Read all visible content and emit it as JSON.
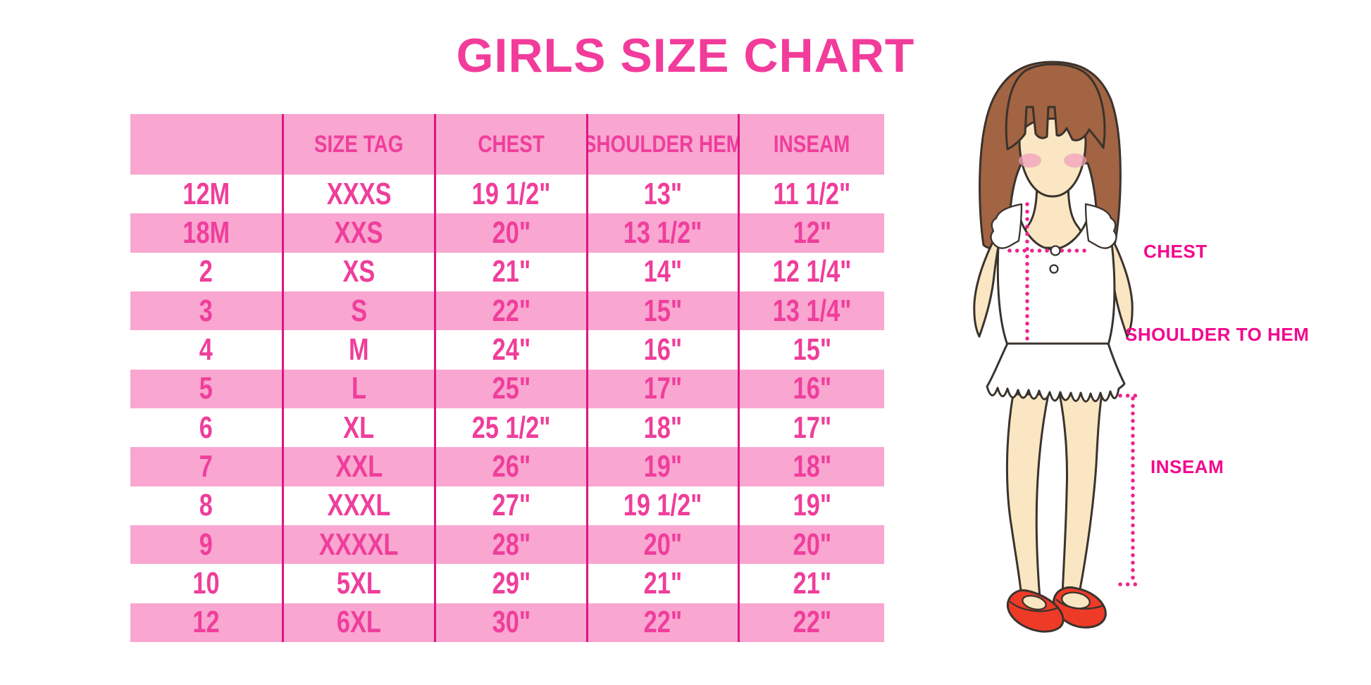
{
  "chart_data": {
    "type": "table",
    "title": "GIRLS SIZE CHART",
    "columns": [
      "",
      "SIZE TAG",
      "CHEST",
      "SHOULDER HEM",
      "INSEAM"
    ],
    "rows": [
      [
        "12M",
        "XXXS",
        "19 1/2\"",
        "13\"",
        "11 1/2\""
      ],
      [
        "18M",
        "XXS",
        "20\"",
        "13 1/2\"",
        "12\""
      ],
      [
        "2",
        "XS",
        "21\"",
        "14\"",
        "12 1/4\""
      ],
      [
        "3",
        "S",
        "22\"",
        "15\"",
        "13 1/4\""
      ],
      [
        "4",
        "M",
        "24\"",
        "16\"",
        "15\""
      ],
      [
        "5",
        "L",
        "25\"",
        "17\"",
        "16\""
      ],
      [
        "6",
        "XL",
        "25 1/2\"",
        "18\"",
        "17\""
      ],
      [
        "7",
        "XXL",
        "26\"",
        "19\"",
        "18\""
      ],
      [
        "8",
        "XXXL",
        "27\"",
        "19 1/2\"",
        "19\""
      ],
      [
        "9",
        "XXXXL",
        "28\"",
        "20\"",
        "20\""
      ],
      [
        "10",
        "5XL",
        "29\"",
        "21\"",
        "21\""
      ],
      [
        "12",
        "6XL",
        "30\"",
        "22\"",
        "22\""
      ]
    ],
    "row_striping": "first row white, then alternating pink",
    "grid": "vertical magenta dividers only"
  },
  "figure": {
    "labels": {
      "chest": "CHEST",
      "shoulder_to_hem": "SHOULDER TO HEM",
      "inseam": "INSEAM"
    }
  },
  "colors": {
    "title_pink": "#F23C9B",
    "cell_text_pink": "#EF3E9B",
    "row_pink": "#F9A6D1",
    "divider_pink": "#DD1580",
    "label_magenta": "#F2078D",
    "dotted_line": "#EC2490",
    "hair_brown": "#A26442",
    "skin": "#FAE6C2",
    "blush": "#F2A0BC",
    "shoe_red": "#EE3B28",
    "outline": "#3A332D"
  }
}
